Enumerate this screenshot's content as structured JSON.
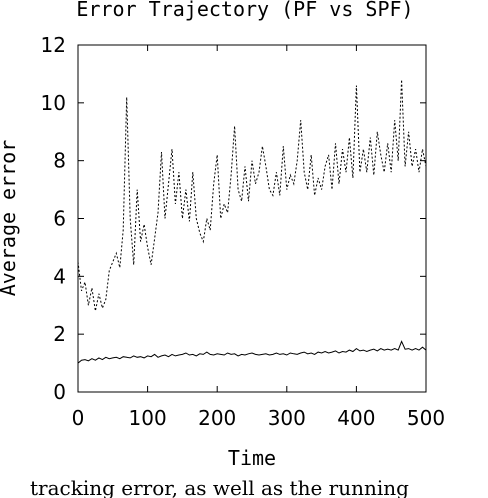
{
  "chart_data": {
    "type": "line",
    "title": "Error Trajectory (PF vs SPF)",
    "xlabel": "Time",
    "ylabel": "Average error",
    "xlim": [
      0,
      500
    ],
    "ylim": [
      0,
      12
    ],
    "xticks": [
      "0",
      "100",
      "200",
      "300",
      "400",
      "500"
    ],
    "yticks": [
      "0",
      "2",
      "4",
      "6",
      "8",
      "10",
      "12"
    ],
    "grid": false,
    "legend": "none",
    "series": [
      {
        "style": "dashed",
        "color": "#000000",
        "x": [
          0,
          5,
          10,
          15,
          20,
          25,
          30,
          35,
          40,
          45,
          50,
          55,
          60,
          65,
          70,
          75,
          80,
          85,
          90,
          95,
          100,
          105,
          110,
          115,
          120,
          125,
          130,
          135,
          140,
          145,
          150,
          155,
          160,
          165,
          170,
          175,
          180,
          185,
          190,
          195,
          200,
          205,
          210,
          215,
          220,
          225,
          230,
          235,
          240,
          245,
          250,
          255,
          260,
          265,
          270,
          275,
          280,
          285,
          290,
          295,
          300,
          305,
          310,
          315,
          320,
          325,
          330,
          335,
          340,
          345,
          350,
          355,
          360,
          365,
          370,
          375,
          380,
          385,
          390,
          395,
          400,
          405,
          410,
          415,
          420,
          425,
          430,
          435,
          440,
          445,
          450,
          455,
          460,
          465,
          470,
          475,
          480,
          485,
          490,
          495,
          500
        ],
        "y": [
          4.5,
          3.5,
          3.8,
          3.0,
          3.6,
          2.8,
          3.4,
          2.9,
          3.2,
          4.2,
          4.5,
          4.8,
          4.3,
          5.6,
          10.2,
          6.0,
          4.4,
          7.0,
          5.2,
          5.8,
          5.0,
          4.4,
          5.3,
          6.2,
          8.3,
          6.0,
          7.2,
          8.4,
          6.5,
          7.6,
          6.0,
          7.0,
          5.9,
          7.6,
          6.0,
          5.5,
          5.2,
          6.0,
          5.6,
          7.2,
          8.2,
          6.0,
          6.5,
          6.2,
          7.5,
          9.2,
          7.0,
          6.6,
          7.8,
          6.6,
          8.0,
          7.2,
          7.6,
          8.5,
          7.8,
          7.0,
          6.8,
          7.6,
          6.8,
          8.5,
          7.0,
          7.5,
          7.2,
          8.0,
          9.4,
          7.6,
          7.0,
          8.2,
          6.8,
          7.4,
          7.0,
          7.8,
          8.2,
          7.0,
          8.6,
          7.2,
          8.4,
          7.6,
          8.8,
          7.4,
          10.6,
          7.6,
          8.4,
          7.6,
          8.8,
          7.5,
          9.0,
          8.2,
          7.6,
          8.6,
          7.6,
          9.4,
          8.0,
          10.8,
          7.8,
          9.0,
          7.8,
          8.4,
          7.6,
          8.4,
          7.8
        ]
      },
      {
        "style": "solid",
        "color": "#000000",
        "x": [
          0,
          5,
          10,
          15,
          20,
          25,
          30,
          35,
          40,
          45,
          50,
          55,
          60,
          65,
          70,
          75,
          80,
          85,
          90,
          95,
          100,
          105,
          110,
          115,
          120,
          125,
          130,
          135,
          140,
          145,
          150,
          155,
          160,
          165,
          170,
          175,
          180,
          185,
          190,
          195,
          200,
          205,
          210,
          215,
          220,
          225,
          230,
          235,
          240,
          245,
          250,
          255,
          260,
          265,
          270,
          275,
          280,
          285,
          290,
          295,
          300,
          305,
          310,
          315,
          320,
          325,
          330,
          335,
          340,
          345,
          350,
          355,
          360,
          365,
          370,
          375,
          380,
          385,
          390,
          395,
          400,
          405,
          410,
          415,
          420,
          425,
          430,
          435,
          440,
          445,
          450,
          455,
          460,
          465,
          470,
          475,
          480,
          485,
          490,
          495,
          500
        ],
        "y": [
          1.0,
          1.1,
          1.12,
          1.08,
          1.15,
          1.1,
          1.18,
          1.12,
          1.2,
          1.15,
          1.18,
          1.2,
          1.15,
          1.22,
          1.2,
          1.18,
          1.25,
          1.2,
          1.22,
          1.18,
          1.25,
          1.22,
          1.3,
          1.2,
          1.25,
          1.28,
          1.22,
          1.3,
          1.25,
          1.28,
          1.3,
          1.35,
          1.28,
          1.3,
          1.25,
          1.32,
          1.3,
          1.38,
          1.3,
          1.28,
          1.32,
          1.3,
          1.28,
          1.35,
          1.3,
          1.32,
          1.25,
          1.3,
          1.28,
          1.32,
          1.35,
          1.3,
          1.28,
          1.3,
          1.32,
          1.28,
          1.3,
          1.35,
          1.3,
          1.32,
          1.28,
          1.35,
          1.32,
          1.3,
          1.35,
          1.38,
          1.32,
          1.35,
          1.3,
          1.38,
          1.35,
          1.4,
          1.35,
          1.38,
          1.42,
          1.35,
          1.4,
          1.38,
          1.45,
          1.4,
          1.5,
          1.42,
          1.45,
          1.4,
          1.45,
          1.48,
          1.42,
          1.5,
          1.45,
          1.48,
          1.45,
          1.5,
          1.45,
          1.75,
          1.48,
          1.5,
          1.45,
          1.5,
          1.45,
          1.55,
          1.45
        ]
      }
    ]
  },
  "caption": "tracking error, as well as the running"
}
